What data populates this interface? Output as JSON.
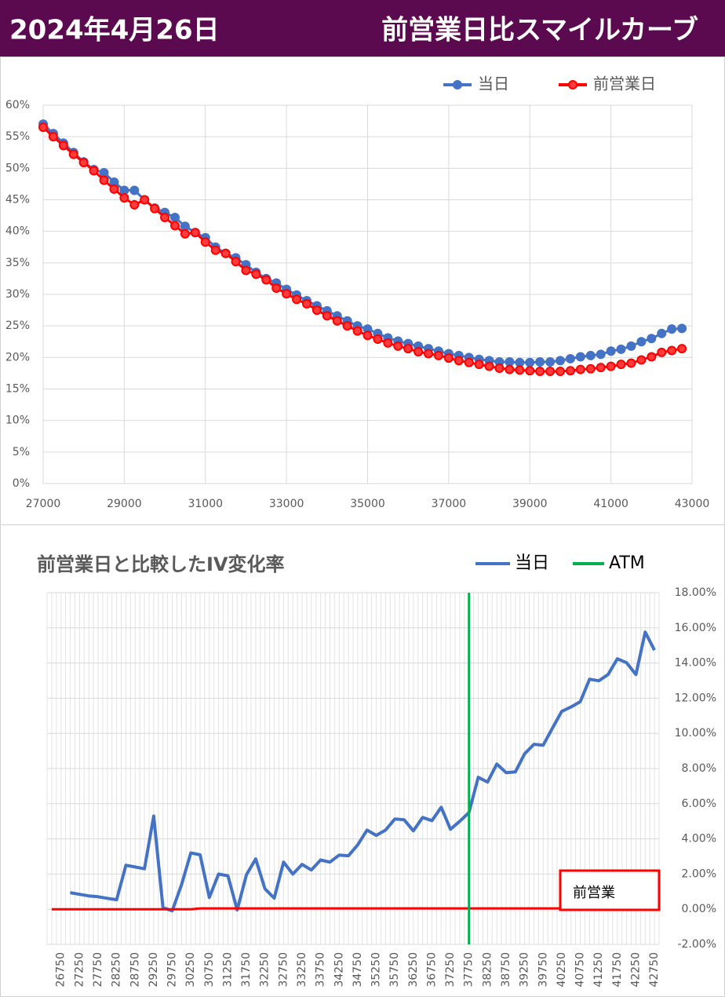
{
  "header": {
    "date": "2024年4月26日",
    "title": "前営業日比スマイルカーブ"
  },
  "chart_data": [
    {
      "type": "line",
      "markers": true,
      "grid": true,
      "legend": "top",
      "x": [
        27000,
        27250,
        27500,
        27750,
        28000,
        28250,
        28500,
        28750,
        29000,
        29250,
        29500,
        29750,
        30000,
        30250,
        30500,
        30750,
        31000,
        31250,
        31500,
        31750,
        32000,
        32250,
        32500,
        32750,
        33000,
        33250,
        33500,
        33750,
        34000,
        34250,
        34500,
        34750,
        35000,
        35250,
        35500,
        35750,
        36000,
        36250,
        36500,
        36750,
        37000,
        37250,
        37500,
        37750,
        38000,
        38250,
        38500,
        38750,
        39000,
        39250,
        39500,
        39750,
        40000,
        40250,
        40500,
        40750,
        41000,
        41250,
        41500,
        41750,
        42000,
        42250,
        42500,
        42750
      ],
      "series": [
        {
          "name": "当日",
          "color": "#4472c4",
          "values": [
            57,
            55.5,
            54,
            52.5,
            51,
            49.8,
            49.3,
            47.8,
            46.5,
            46.5,
            45,
            43.7,
            43,
            42.2,
            40.8,
            39.8,
            39,
            37.5,
            36.5,
            35.8,
            34.7,
            33.5,
            32.5,
            31.8,
            30.8,
            29.9,
            29,
            28.2,
            27.4,
            26.6,
            25.8,
            25,
            24.5,
            23.8,
            23.1,
            22.6,
            22.2,
            21.8,
            21.4,
            21,
            20.6,
            20.3,
            20,
            19.7,
            19.5,
            19.3,
            19.3,
            19.2,
            19.2,
            19.3,
            19.3,
            19.5,
            19.8,
            20.1,
            20.3,
            20.5,
            21,
            21.3,
            21.8,
            22.5,
            23,
            23.8,
            24.5,
            24.6
          ]
        },
        {
          "name": "前営業日",
          "color": "#ff0000",
          "values": [
            56.5,
            55,
            53.6,
            52.2,
            50.9,
            49.6,
            48.1,
            46.7,
            45.3,
            44.2,
            45,
            43.6,
            42.2,
            40.9,
            39.6,
            39.8,
            38.3,
            37,
            36.5,
            35.2,
            33.8,
            33.2,
            32.3,
            31,
            30.1,
            29.2,
            28.5,
            27.5,
            26.6,
            25.8,
            25,
            24.2,
            23.5,
            22.9,
            22.3,
            21.8,
            21.4,
            20.9,
            20.6,
            20.3,
            19.9,
            19.5,
            19.2,
            18.9,
            18.6,
            18.3,
            18.1,
            18,
            17.9,
            17.8,
            17.8,
            17.8,
            17.9,
            18.1,
            18.2,
            18.4,
            18.6,
            18.9,
            19.1,
            19.6,
            20.1,
            20.8,
            21.1,
            21.4
          ]
        }
      ],
      "xlim": [
        27000,
        43000
      ],
      "xticks": [
        27000,
        29000,
        31000,
        33000,
        35000,
        37000,
        39000,
        41000,
        43000
      ],
      "ylim": [
        0,
        60
      ],
      "yticks": [
        {
          "value": 0,
          "label": "0%"
        },
        {
          "value": 5,
          "label": "5%"
        },
        {
          "value": 10,
          "label": "10%"
        },
        {
          "value": 15,
          "label": "15%"
        },
        {
          "value": 20,
          "label": "20%"
        },
        {
          "value": 25,
          "label": "25%"
        },
        {
          "value": 30,
          "label": "30%"
        },
        {
          "value": 35,
          "label": "35%"
        },
        {
          "value": 40,
          "label": "40%"
        },
        {
          "value": 45,
          "label": "45%"
        },
        {
          "value": 50,
          "label": "50%"
        },
        {
          "value": 55,
          "label": "55%"
        },
        {
          "value": 60,
          "label": "60%"
        }
      ]
    },
    {
      "type": "line",
      "title": "前営業日と比較したIV変化率",
      "grid": true,
      "legend": "top-right",
      "categories": [
        null,
        26750,
        null,
        27250,
        null,
        27750,
        null,
        28250,
        null,
        28750,
        null,
        29250,
        null,
        29750,
        null,
        30250,
        null,
        30750,
        null,
        31250,
        null,
        31750,
        null,
        32250,
        null,
        32750,
        null,
        33250,
        null,
        33750,
        null,
        34250,
        null,
        34750,
        null,
        35250,
        null,
        35750,
        null,
        36250,
        null,
        36750,
        null,
        37250,
        null,
        37750,
        null,
        38250,
        null,
        38750,
        null,
        39250,
        null,
        39750,
        null,
        40250,
        null,
        40750,
        null,
        41250,
        null,
        41750,
        null,
        42250,
        null,
        42750
      ],
      "series": [
        {
          "name": "当日",
          "color": "#4472c4",
          "values": [
            null,
            null,
            0.94,
            0.85,
            0.76,
            0.71,
            0.62,
            0.54,
            2.5,
            2.4,
            2.3,
            5.3,
            0.09,
            -0.09,
            1.4,
            3.2,
            3.1,
            0.67,
            2.0,
            1.9,
            -0.04,
            1.96,
            2.86,
            1.16,
            0.63,
            2.68,
            2.0,
            2.55,
            2.23,
            2.8,
            2.68,
            3.08,
            3.04,
            3.66,
            4.5,
            4.2,
            4.5,
            5.13,
            5.09,
            4.46,
            5.22,
            5.04,
            5.8,
            4.55,
            5.0,
            5.5,
            7.5,
            7.23,
            8.26,
            7.77,
            7.81,
            8.84,
            9.38,
            9.33,
            10.3,
            11.25,
            11.5,
            11.8,
            13.08,
            12.99,
            13.35,
            14.24,
            14.02,
            13.35,
            15.76,
            14.73
          ]
        },
        {
          "name": "前営業",
          "color": "#ff0000",
          "values": [
            0,
            0,
            0,
            0,
            0,
            0,
            0,
            0,
            0,
            0,
            0,
            0,
            0,
            0,
            0,
            0,
            0.05,
            0.05,
            0.05,
            0.05,
            0.05,
            0.05,
            0.05,
            0.05,
            0.05,
            0.05,
            0.05,
            0.05,
            0.05,
            0.05,
            0.05,
            0.05,
            0.05,
            0.05,
            0.05,
            0.05,
            0.05,
            0.05,
            0.05,
            0.05,
            0.05,
            0.05,
            0.05,
            0.05,
            0.05,
            0.05,
            0.05,
            0.05,
            0.05,
            0.05,
            0.05,
            0.05,
            0.05,
            0.05,
            0.05,
            0.05,
            0.05,
            0.05,
            0.05,
            0.05,
            0.05,
            0.05,
            0.05,
            0.05,
            0.05,
            0.05
          ]
        }
      ],
      "atm": {
        "name": "ATM",
        "color": "#00b050",
        "x": 37750
      },
      "ylim": [
        -2,
        18
      ],
      "yticks": [
        {
          "value": -2,
          "label": "-2.00%"
        },
        {
          "value": 0,
          "label": "0.00%"
        },
        {
          "value": 2,
          "label": "2.00%"
        },
        {
          "value": 4,
          "label": "4.00%"
        },
        {
          "value": 6,
          "label": "6.00%"
        },
        {
          "value": 8,
          "label": "8.00%"
        },
        {
          "value": 10,
          "label": "10.00%"
        },
        {
          "value": 12,
          "label": "12.00%"
        },
        {
          "value": 14,
          "label": "14.00%"
        },
        {
          "value": 16,
          "label": "16.00%"
        },
        {
          "value": 18,
          "label": "18.00%"
        }
      ]
    }
  ]
}
